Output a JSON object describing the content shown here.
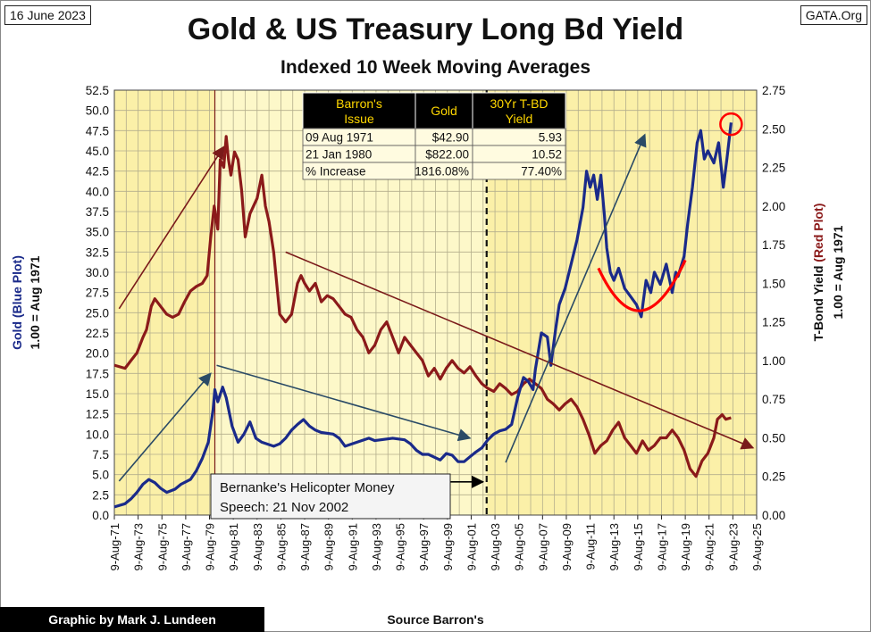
{
  "header": {
    "date": "16 June 2023",
    "site": "GATA.Org",
    "title": "Gold & US Treasury Long Bd Yield",
    "subtitle": "Indexed 10 Week Moving Averages"
  },
  "footer": {
    "credit": "Graphic by Mark J. Lundeen",
    "source": "Source Barron's"
  },
  "chart_data": {
    "type": "line",
    "left_axis": {
      "label_gold": "Gold",
      "label_plot": "(Blue Plot)",
      "label_base": "1.00 = Aug 1971",
      "ticks": [
        "0.0",
        "2.5",
        "5.0",
        "7.5",
        "10.0",
        "12.5",
        "15.0",
        "17.5",
        "20.0",
        "22.5",
        "25.0",
        "27.5",
        "30.0",
        "32.5",
        "35.0",
        "37.5",
        "40.0",
        "42.5",
        "45.0",
        "47.5",
        "50.0",
        "52.5"
      ],
      "range": [
        0,
        52.5
      ]
    },
    "right_axis": {
      "label_yield": "T-Bond Yield",
      "label_plot": "(Red Plot)",
      "label_base": "1.00 = Aug 1971",
      "ticks": [
        "0.00",
        "0.25",
        "0.50",
        "0.75",
        "1.00",
        "1.25",
        "1.50",
        "1.75",
        "2.00",
        "2.25",
        "2.50",
        "2.75"
      ],
      "range": [
        0,
        2.75
      ]
    },
    "x_ticks": [
      "9-Aug-71",
      "9-Aug-73",
      "9-Aug-75",
      "9-Aug-77",
      "9-Aug-79",
      "9-Aug-81",
      "9-Aug-83",
      "9-Aug-85",
      "9-Aug-87",
      "9-Aug-89",
      "9-Aug-91",
      "9-Aug-93",
      "9-Aug-95",
      "9-Aug-97",
      "9-Aug-99",
      "9-Aug-01",
      "9-Aug-03",
      "9-Aug-05",
      "9-Aug-07",
      "9-Aug-09",
      "9-Aug-11",
      "9-Aug-13",
      "9-Aug-15",
      "9-Aug-17",
      "9-Aug-19",
      "9-Aug-21",
      "9-Aug-23",
      "9-Aug-25"
    ],
    "x_range": [
      1971.6,
      2025.6
    ],
    "series": [
      {
        "axis": "left",
        "color": "#1a2a8a",
        "x": [
          1971.6,
          1972.5,
          1973.0,
          1973.5,
          1974.0,
          1974.5,
          1975.0,
          1975.5,
          1976.0,
          1976.7,
          1977.2,
          1978.0,
          1978.5,
          1979.0,
          1979.5,
          1979.9,
          1980.05,
          1980.3,
          1980.7,
          1981.0,
          1981.5,
          1982.0,
          1982.5,
          1983.0,
          1983.5,
          1984.0,
          1985.0,
          1985.5,
          1986.0,
          1986.5,
          1987.0,
          1987.5,
          1988.0,
          1988.5,
          1989.0,
          1990.0,
          1990.5,
          1991.0,
          1992.0,
          1993.0,
          1993.5,
          1994.0,
          1995.0,
          1996.0,
          1996.5,
          1997.0,
          1997.5,
          1998.0,
          1999.0,
          1999.5,
          2000.0,
          2000.5,
          2001.0,
          2001.5,
          2002.0,
          2002.5,
          2003.0,
          2003.5,
          2004.0,
          2004.5,
          2005.0,
          2005.5,
          2006.0,
          2006.4,
          2006.8,
          2007.0,
          2007.5,
          2008.0,
          2008.3,
          2008.7,
          2009.0,
          2009.5,
          2010.0,
          2010.5,
          2011.0,
          2011.3,
          2011.6,
          2011.9,
          2012.2,
          2012.5,
          2012.8,
          2013.0,
          2013.3,
          2013.6,
          2014.0,
          2014.5,
          2015.0,
          2015.5,
          2015.9,
          2016.3,
          2016.7,
          2017.0,
          2017.5,
          2018.0,
          2018.5,
          2018.8,
          2019.0,
          2019.5,
          2019.8,
          2020.2,
          2020.6,
          2020.9,
          2021.2,
          2021.5,
          2022.0,
          2022.4,
          2022.8,
          2023.1,
          2023.45
        ],
        "values": [
          1.0,
          1.4,
          2.0,
          2.8,
          3.8,
          4.4,
          4.0,
          3.3,
          2.8,
          3.2,
          3.8,
          4.4,
          5.5,
          7.0,
          9.0,
          13.0,
          15.5,
          14.0,
          15.8,
          14.5,
          11.0,
          9.0,
          10.0,
          11.5,
          9.5,
          9.0,
          8.5,
          8.8,
          9.5,
          10.5,
          11.2,
          11.8,
          11.0,
          10.5,
          10.2,
          10.0,
          9.5,
          8.5,
          9.0,
          9.5,
          9.2,
          9.3,
          9.5,
          9.3,
          8.8,
          8.0,
          7.5,
          7.5,
          6.8,
          7.6,
          7.4,
          6.6,
          6.6,
          7.2,
          7.8,
          8.3,
          9.3,
          10.0,
          10.4,
          10.6,
          11.2,
          14.5,
          17.0,
          16.5,
          15.5,
          18.0,
          22.5,
          22.0,
          18.5,
          23.0,
          26.0,
          28.0,
          31.0,
          34.0,
          38.0,
          42.5,
          40.5,
          42.0,
          39.0,
          42.0,
          37.0,
          33.0,
          30.0,
          29.0,
          30.5,
          28.0,
          27.0,
          26.0,
          24.5,
          29.0,
          27.5,
          30.0,
          28.5,
          31.0,
          27.5,
          30.0,
          29.5,
          32.0,
          36.0,
          40.5,
          46.0,
          47.5,
          44.0,
          45.0,
          43.5,
          46.0,
          40.5,
          44.0,
          48.5
        ]
      },
      {
        "axis": "right",
        "color": "#8b1a1a",
        "x": [
          1971.6,
          1972.5,
          1973.0,
          1973.5,
          1974.0,
          1974.3,
          1974.7,
          1975.0,
          1975.5,
          1976.0,
          1976.5,
          1977.0,
          1977.5,
          1978.0,
          1978.5,
          1979.0,
          1979.4,
          1979.7,
          1980.0,
          1980.3,
          1980.5,
          1980.8,
          1981.0,
          1981.2,
          1981.4,
          1981.7,
          1982.0,
          1982.3,
          1982.6,
          1983.0,
          1983.3,
          1983.6,
          1984.0,
          1984.3,
          1984.6,
          1985.0,
          1985.5,
          1986.0,
          1986.5,
          1987.0,
          1987.3,
          1987.6,
          1988.0,
          1988.5,
          1989.0,
          1989.5,
          1990.0,
          1990.5,
          1991.0,
          1991.5,
          1992.0,
          1992.5,
          1993.0,
          1993.5,
          1994.0,
          1994.5,
          1995.0,
          1995.5,
          1996.0,
          1996.5,
          1997.0,
          1997.5,
          1998.0,
          1998.5,
          1999.0,
          1999.5,
          2000.0,
          2000.5,
          2001.0,
          2001.5,
          2002.0,
          2002.5,
          2003.0,
          2003.5,
          2004.0,
          2004.5,
          2005.0,
          2005.5,
          2006.0,
          2006.5,
          2007.0,
          2007.5,
          2008.0,
          2008.5,
          2009.0,
          2009.5,
          2010.0,
          2010.5,
          2011.0,
          2011.5,
          2012.0,
          2012.5,
          2013.0,
          2013.5,
          2014.0,
          2014.5,
          2015.0,
          2015.5,
          2016.0,
          2016.5,
          2017.0,
          2017.5,
          2018.0,
          2018.5,
          2019.0,
          2019.5,
          2020.0,
          2020.5,
          2021.0,
          2021.5,
          2022.0,
          2022.3,
          2022.7,
          2023.0,
          2023.45
        ],
        "values": [
          0.97,
          0.95,
          1.0,
          1.05,
          1.15,
          1.2,
          1.35,
          1.4,
          1.35,
          1.3,
          1.28,
          1.3,
          1.38,
          1.45,
          1.48,
          1.5,
          1.55,
          1.8,
          2.0,
          1.85,
          2.3,
          2.25,
          2.45,
          2.3,
          2.2,
          2.35,
          2.3,
          2.1,
          1.8,
          1.95,
          2.0,
          2.05,
          2.2,
          2.0,
          1.9,
          1.7,
          1.3,
          1.25,
          1.3,
          1.5,
          1.55,
          1.5,
          1.45,
          1.5,
          1.38,
          1.42,
          1.4,
          1.35,
          1.3,
          1.28,
          1.2,
          1.15,
          1.05,
          1.1,
          1.2,
          1.25,
          1.15,
          1.05,
          1.15,
          1.1,
          1.05,
          1.0,
          0.9,
          0.95,
          0.88,
          0.95,
          1.0,
          0.95,
          0.92,
          0.96,
          0.9,
          0.85,
          0.82,
          0.8,
          0.85,
          0.82,
          0.78,
          0.8,
          0.85,
          0.88,
          0.85,
          0.82,
          0.75,
          0.72,
          0.68,
          0.72,
          0.75,
          0.7,
          0.62,
          0.52,
          0.4,
          0.45,
          0.48,
          0.55,
          0.6,
          0.5,
          0.45,
          0.4,
          0.48,
          0.42,
          0.45,
          0.5,
          0.5,
          0.55,
          0.5,
          0.42,
          0.3,
          0.25,
          0.35,
          0.4,
          0.5,
          0.62,
          0.65,
          0.62,
          0.63
        ]
      }
    ],
    "inset_table": {
      "headers": [
        "Barron's Issue",
        "Gold",
        "30Yr T-BD Yield"
      ],
      "rows": [
        [
          "09 Aug 1971",
          "$42.90",
          "5.93"
        ],
        [
          "21 Jan 1980",
          "$822.00",
          "10.52"
        ],
        [
          "% Increase",
          "1816.08%",
          "77.40%"
        ]
      ]
    },
    "annotation": {
      "line1": "Bernanke's Helicopter Money",
      "line2": "Speech: 21 Nov 2002"
    },
    "colors": {
      "plot_bg_light": "#fdf8c9",
      "plot_bg": "#fbf0a8",
      "gold": "#1a2a8a",
      "yield": "#8b1a1a",
      "trend_blue": "#2a4a66",
      "trend_red": "#7a1a1a",
      "highlight": "#ff0000"
    }
  }
}
